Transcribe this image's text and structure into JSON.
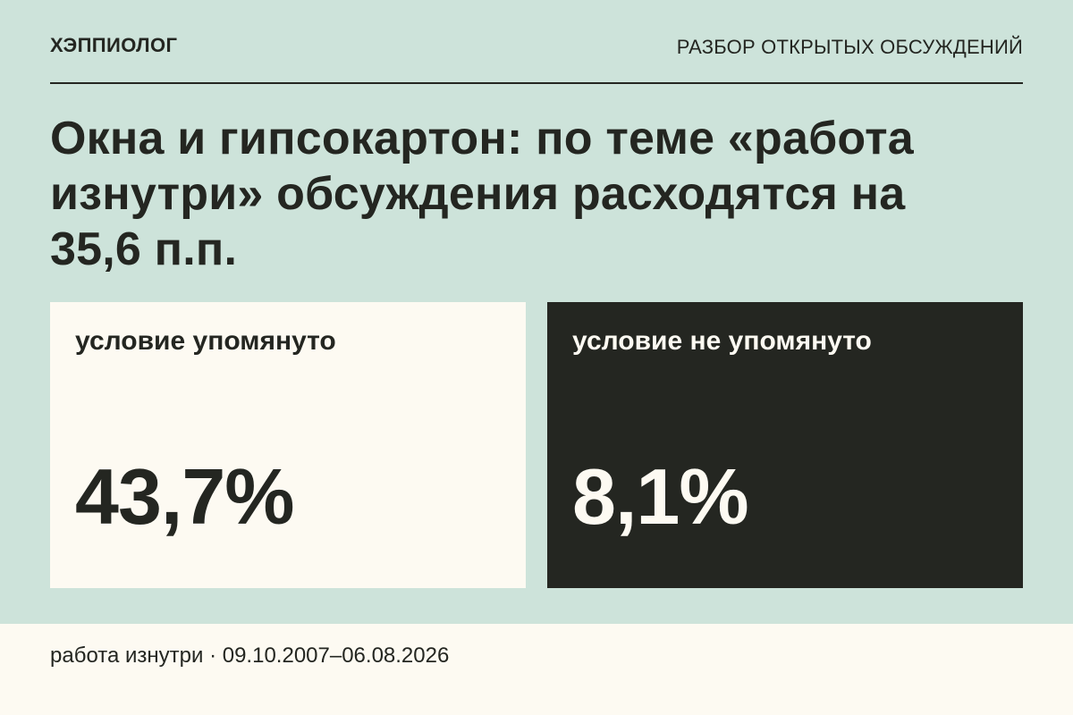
{
  "header": {
    "brand": "ХЭППИОЛОГ",
    "section": "РАЗБОР ОТКРЫТЫХ ОБСУЖДЕНИЙ"
  },
  "headline": "Окна и гипсокартон: по теме «работа изнутри» обсуждения расходятся на 35,6 п.п.",
  "cards": [
    {
      "label": "условие упомянуто",
      "value": "43,7%"
    },
    {
      "label": "условие не упомянуто",
      "value": "8,1%"
    }
  ],
  "footer": {
    "text": "работа изнутри · 09.10.2007–06.08.2026"
  },
  "colors": {
    "background": "#cde3da",
    "light_card": "#fdfaf2",
    "dark_card": "#242621",
    "text_dark": "#242621",
    "text_light": "#fdfaf2"
  }
}
